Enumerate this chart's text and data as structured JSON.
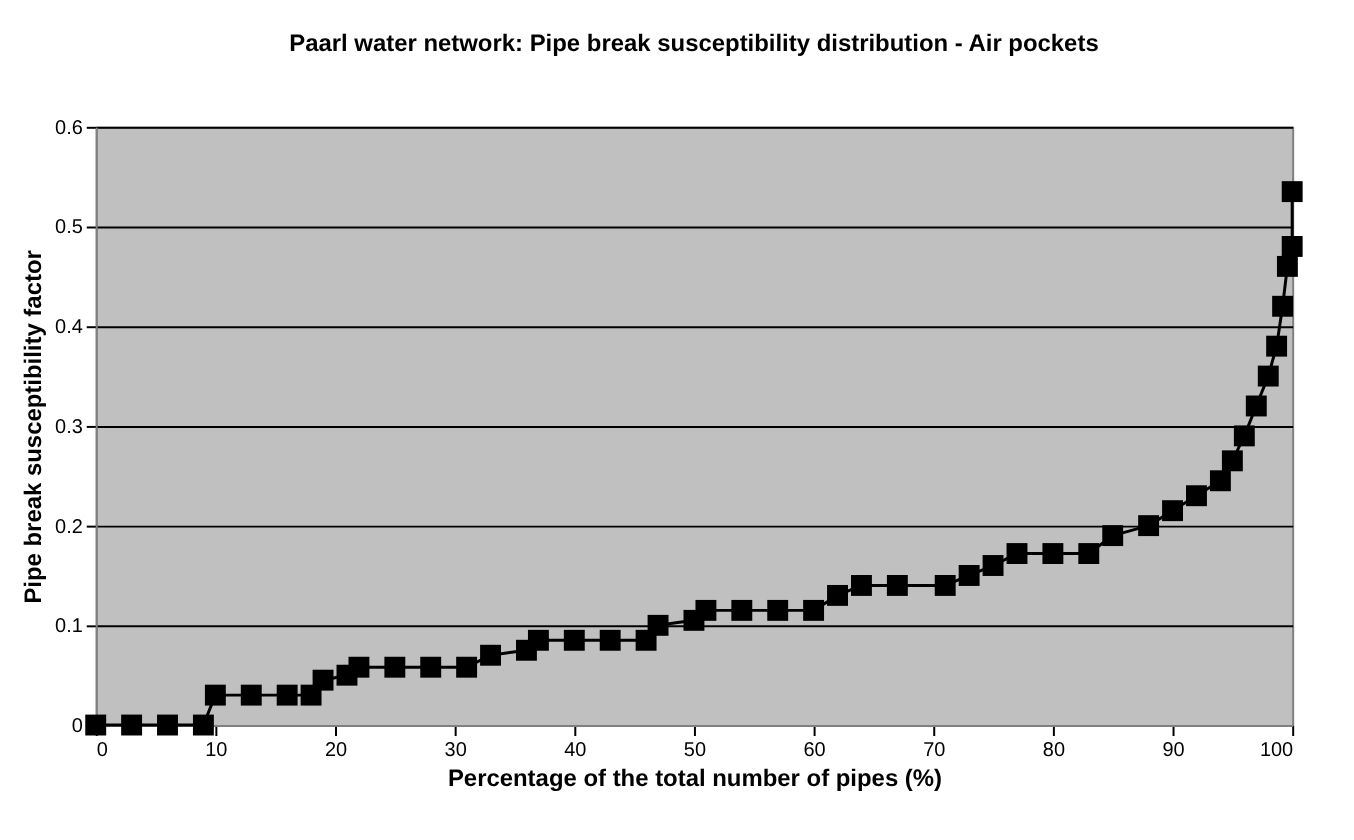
{
  "chart_data": {
    "type": "line",
    "title": "Paarl water network: Pipe break susceptibility distribution - Air pockets",
    "xlabel": "Percentage of the total number of pipes (%)",
    "ylabel": "Pipe break susceptibility factor",
    "x": [
      0,
      3,
      6,
      9,
      10,
      13,
      16,
      18,
      19,
      21,
      22,
      25,
      28,
      31,
      33,
      36,
      37,
      40,
      43,
      46,
      47,
      50,
      51,
      54,
      57,
      60,
      62,
      64,
      67,
      71,
      73,
      75,
      77,
      80,
      83,
      85,
      88,
      90,
      92,
      94,
      95,
      96,
      97,
      98,
      98.7,
      99.2,
      99.6,
      100,
      100
    ],
    "series": [
      {
        "color": "#000000",
        "values": [
          0,
          0,
          0,
          0,
          0.03,
          0.03,
          0.03,
          0.03,
          0.045,
          0.05,
          0.058,
          0.058,
          0.058,
          0.058,
          0.07,
          0.075,
          0.085,
          0.085,
          0.085,
          0.085,
          0.1,
          0.105,
          0.115,
          0.115,
          0.115,
          0.115,
          0.13,
          0.14,
          0.14,
          0.14,
          0.15,
          0.16,
          0.172,
          0.172,
          0.172,
          0.19,
          0.2,
          0.215,
          0.23,
          0.245,
          0.265,
          0.29,
          0.32,
          0.35,
          0.38,
          0.42,
          0.46,
          0.48,
          0.535
        ]
      }
    ],
    "xlim": [
      0,
      100
    ],
    "xticks": [
      0,
      10,
      20,
      30,
      40,
      50,
      60,
      70,
      80,
      90,
      100
    ],
    "ylim": [
      0,
      0.6
    ],
    "yticks": [
      0,
      0.1,
      0.2,
      0.3,
      0.4,
      0.5,
      0.6
    ],
    "grid": "y",
    "marker": "square",
    "line_style": "solid"
  }
}
